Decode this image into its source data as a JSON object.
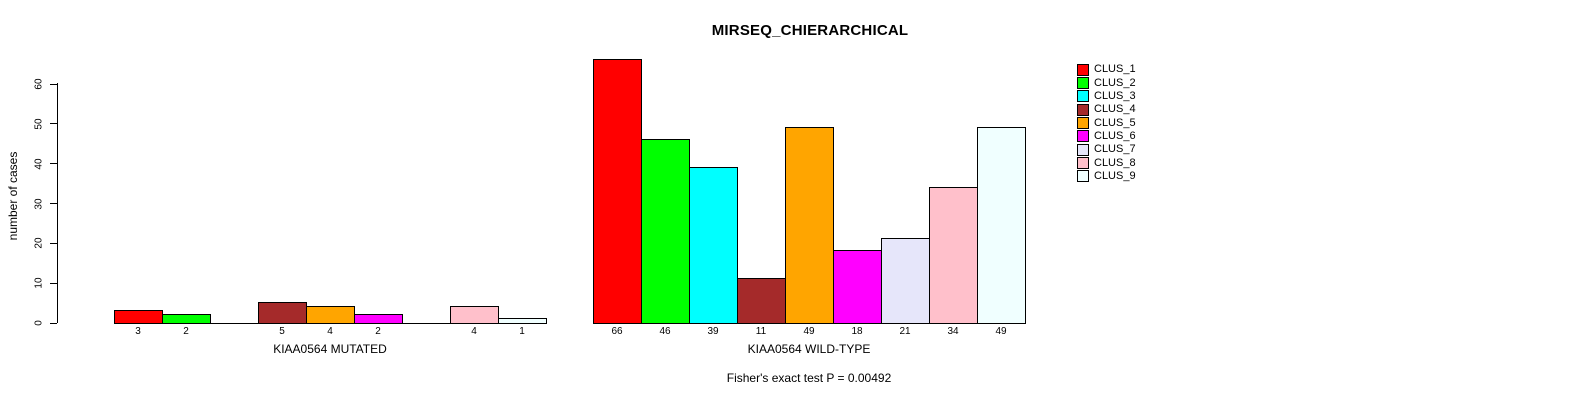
{
  "chart_data": {
    "type": "bar",
    "title": "MIRSEQ_CHIERARCHICAL",
    "ylabel": "number of cases",
    "yticks": [
      0,
      10,
      20,
      30,
      40,
      50,
      60
    ],
    "ylim": [
      0,
      66
    ],
    "grid": false,
    "legend_position": "right",
    "clusters": [
      {
        "name": "CLUS_1",
        "color": "#ff0000"
      },
      {
        "name": "CLUS_2",
        "color": "#00ff00"
      },
      {
        "name": "CLUS_3",
        "color": "#00ffff"
      },
      {
        "name": "CLUS_4",
        "color": "#a52a2a"
      },
      {
        "name": "CLUS_5",
        "color": "#ffa500"
      },
      {
        "name": "CLUS_6",
        "color": "#ff00ff"
      },
      {
        "name": "CLUS_7",
        "color": "#e6e6fa"
      },
      {
        "name": "CLUS_8",
        "color": "#ffc0cb"
      },
      {
        "name": "CLUS_9",
        "color": "#f0ffff"
      }
    ],
    "groups": [
      {
        "label": "KIAA0564 MUTATED",
        "values": [
          3,
          2,
          0,
          5,
          4,
          2,
          0,
          4,
          1
        ]
      },
      {
        "label": "KIAA0564 WILD-TYPE",
        "values": [
          66,
          46,
          39,
          11,
          49,
          18,
          21,
          34,
          49
        ]
      }
    ],
    "bar_value_labels_hidden_when_zero": true,
    "footnote": "Fisher's exact test P = 0.00492"
  }
}
